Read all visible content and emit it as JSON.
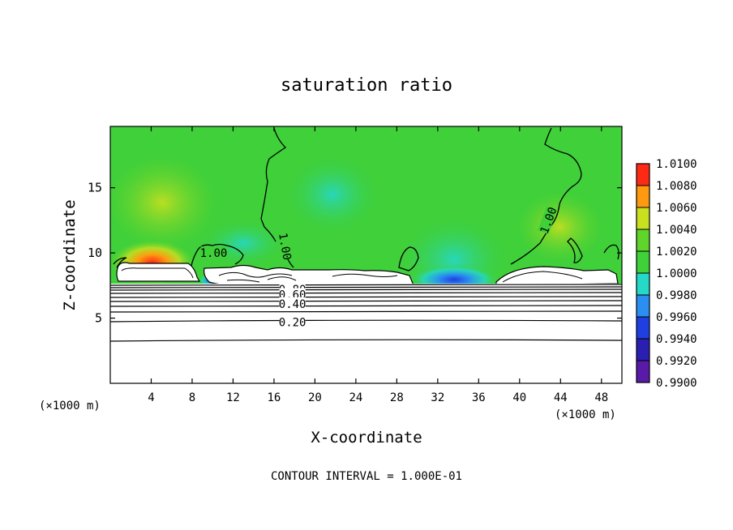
{
  "chart_data": {
    "type": "heatmap",
    "title": "saturation ratio",
    "xlabel": "X-coordinate",
    "ylabel": "Z-coordinate",
    "x_unit": "(×1000 m)",
    "y_unit": "(×1000 m)",
    "xlim": [
      0,
      50
    ],
    "ylim": [
      0,
      19.7
    ],
    "x_ticks": [
      4,
      8,
      12,
      16,
      20,
      24,
      28,
      32,
      36,
      40,
      44,
      48
    ],
    "y_ticks": [
      5,
      10,
      15
    ],
    "colorbar": {
      "levels": [
        0.99,
        0.992,
        0.994,
        0.996,
        0.998,
        1.0,
        1.002,
        1.004,
        1.006,
        1.008,
        1.01
      ],
      "labels": [
        "0.9900",
        "0.9920",
        "0.9940",
        "0.9960",
        "0.9980",
        "1.0000",
        "1.0020",
        "1.0040",
        "1.0060",
        "1.0080",
        "1.0100"
      ],
      "colors": [
        "#5a1aa8",
        "#2a1fb0",
        "#1f3fe0",
        "#2a8ff0",
        "#25d8c8",
        "#3fd03a",
        "#5fd42a",
        "#c8e020",
        "#ff9a10",
        "#ff2a14",
        "#ff8a8a"
      ]
    },
    "contour_labels": [
      {
        "text": "1.00",
        "x": 10.1,
        "z": 10.0
      },
      {
        "text": "1.00",
        "x": 17.1,
        "z": 10.5
      },
      {
        "text": "1.00",
        "x": 42.8,
        "z": 12.5
      },
      {
        "text": "0.80",
        "x": 17.8,
        "z": 7.2
      },
      {
        "text": "0.60",
        "x": 17.8,
        "z": 6.8
      },
      {
        "text": "0.40",
        "x": 17.8,
        "z": 6.1
      },
      {
        "text": "0.20",
        "x": 17.8,
        "z": 4.7
      }
    ],
    "contour_interval_text": "CONTOUR INTERVAL = 1.000E-01",
    "grid": false
  }
}
